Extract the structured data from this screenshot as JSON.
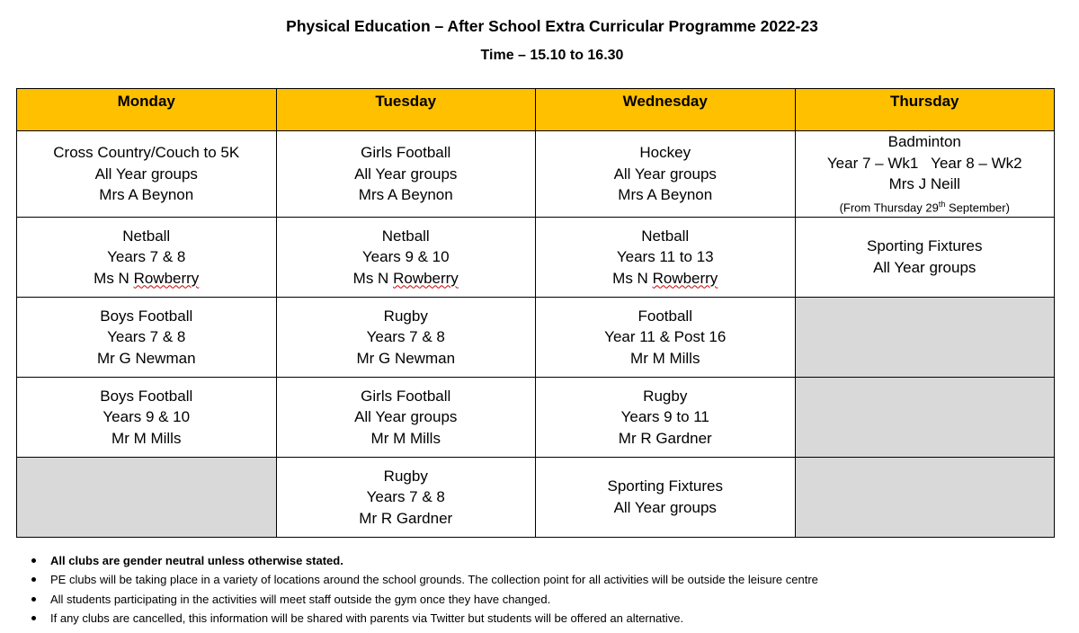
{
  "header": {
    "title": "Physical Education – After School Extra Curricular Programme 2022-23",
    "time": "Time – 15.10 to 16.30"
  },
  "days": [
    "Monday",
    "Tuesday",
    "Wednesday",
    "Thursday"
  ],
  "rows": [
    [
      {
        "activity": "Cross Country/Couch to 5K",
        "groups": "All Year groups",
        "teacher": "Mrs A Beynon"
      },
      {
        "activity": "Girls Football",
        "groups": "All Year groups",
        "teacher": "Mrs A Beynon"
      },
      {
        "activity": "Hockey",
        "groups": "All Year groups",
        "teacher": "Mrs A Beynon"
      },
      {
        "activity": "Badminton",
        "groups": "Year 7 – Wk1   Year 8 – Wk2",
        "teacher": "Mrs J Neill",
        "note_prefix": "(From Thursday 29",
        "note_sup": "th",
        "note_suffix": " September)"
      }
    ],
    [
      {
        "activity": "Netball",
        "groups": "Years 7 & 8",
        "teacher_title": "Ms N ",
        "teacher_name": "Rowberry"
      },
      {
        "activity": "Netball",
        "groups": "Years 9 & 10",
        "teacher_title": "Ms N ",
        "teacher_name": "Rowberry"
      },
      {
        "activity": "Netball",
        "groups": "Years 11 to 13",
        "teacher_title": "Ms N ",
        "teacher_name": "Rowberry"
      },
      {
        "activity": "Sporting Fixtures",
        "groups": "All Year groups"
      }
    ],
    [
      {
        "activity": "Boys Football",
        "groups": "Years 7 & 8",
        "teacher": "Mr G Newman"
      },
      {
        "activity": "Rugby",
        "groups": "Years 7 & 8",
        "teacher": "Mr G Newman"
      },
      {
        "activity": "Football",
        "groups": "Year 11 & Post 16",
        "teacher": "Mr M Mills"
      },
      null
    ],
    [
      {
        "activity": "Boys Football",
        "groups": "Years 9 & 10",
        "teacher": "Mr M Mills"
      },
      {
        "activity": "Girls Football",
        "groups": "All Year groups",
        "teacher": "Mr M Mills"
      },
      {
        "activity": "Rugby",
        "groups": "Years 9 to 11",
        "teacher": "Mr R Gardner"
      },
      null
    ],
    [
      null,
      {
        "activity": "Rugby",
        "groups": "Years 7 & 8",
        "teacher": "Mr R Gardner"
      },
      {
        "activity": "Sporting Fixtures",
        "groups": "All Year groups"
      },
      null
    ]
  ],
  "notes": [
    "All clubs are gender neutral unless otherwise stated.",
    "PE clubs will be taking place in a variety of locations around the school grounds.  The collection point for all activities will be outside the leisure centre",
    "All students participating in the activities will meet staff outside the gym once they have changed.",
    "If any clubs are cancelled, this information will be shared with parents via Twitter but students will be offered an alternative."
  ]
}
